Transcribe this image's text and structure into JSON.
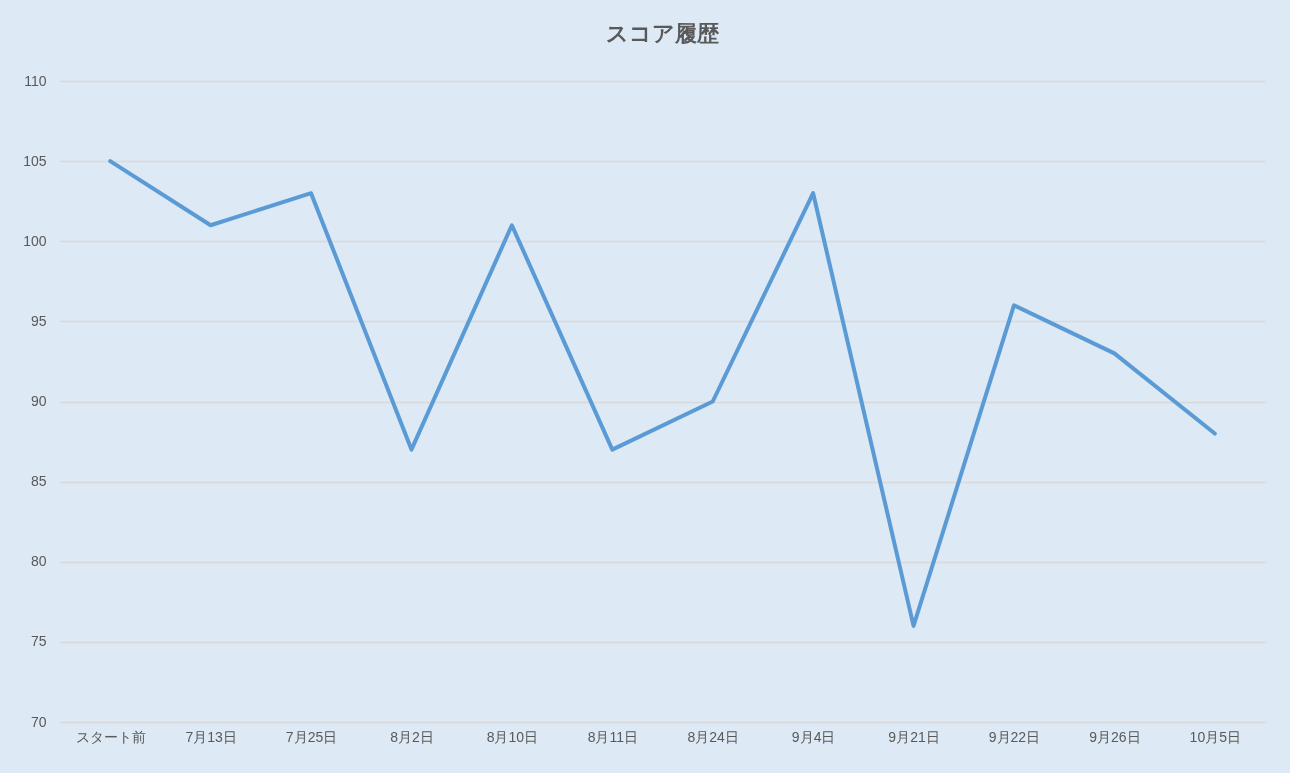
{
  "chart_data": {
    "type": "line",
    "title": "スコア履歴",
    "categories": [
      "スタート前",
      "7月13日",
      "7月25日",
      "8月2日",
      "8月10日",
      "8月11日",
      "8月24日",
      "9月4日",
      "9月21日",
      "9月22日",
      "9月26日",
      "10月5日"
    ],
    "series": [
      {
        "color": "#5b9bd5",
        "values": [
          105,
          101,
          103,
          87,
          101,
          87,
          90,
          103,
          76,
          96,
          93,
          88
        ]
      }
    ],
    "ylim": [
      70,
      110
    ],
    "yticks": [
      70,
      75,
      80,
      85,
      90,
      95,
      100,
      105,
      110
    ],
    "grid": "y",
    "marker": "none",
    "line_style": "solid"
  }
}
